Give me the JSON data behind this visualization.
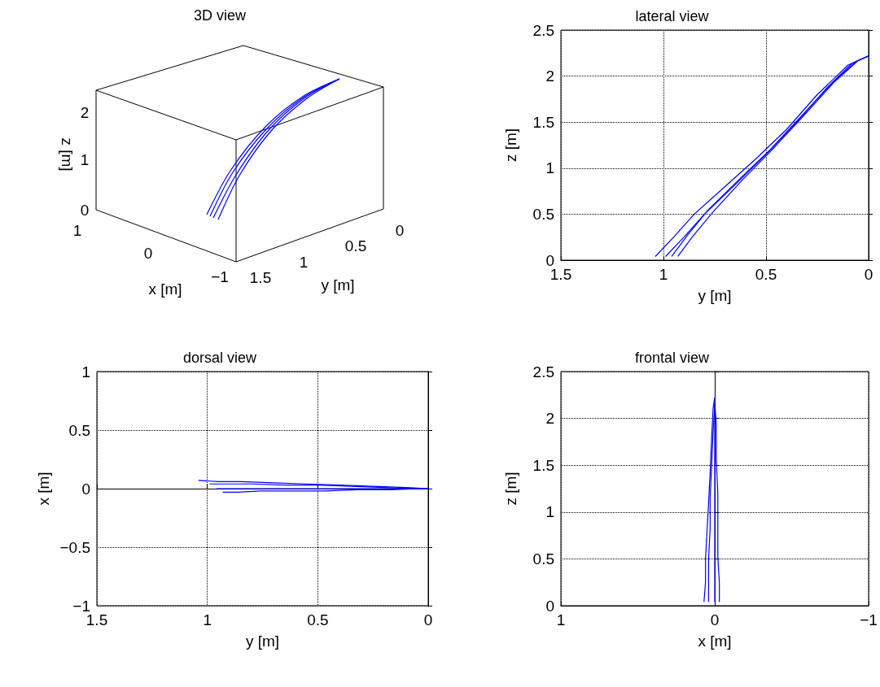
{
  "chart_data": [
    {
      "type": "other",
      "title": "3D view",
      "xlabel": "x [m]",
      "ylabel": "y [m]",
      "annotations": [
        "z [m]",
        "0",
        "1",
        "2",
        "1",
        "0",
        "−1",
        "1.5",
        "1",
        "0.5",
        "0"
      ]
    },
    {
      "type": "line",
      "title": "lateral view",
      "xlabel": "y [m]",
      "ylabel": "z [m]",
      "xlim": [
        1.5,
        0
      ],
      "xticks": [
        1.5,
        1,
        0.5,
        0
      ],
      "ylim": [
        0,
        2.5
      ],
      "yticks": [
        0,
        0.5,
        1,
        1.5,
        2,
        2.5
      ],
      "grid": true,
      "marker": "none",
      "line_style": "solid",
      "series": [
        {
          "color": "#0000ff",
          "x": [
            1.04,
            0.95,
            0.85,
            0.7,
            0.55,
            0.4,
            0.25,
            0.1,
            0
          ],
          "values": [
            0.04,
            0.25,
            0.5,
            0.8,
            1.1,
            1.42,
            1.8,
            2.12,
            2.22
          ]
        },
        {
          "color": "#0000ff",
          "x": [
            0.99,
            0.9,
            0.8,
            0.65,
            0.5,
            0.35,
            0.2,
            0.08,
            0
          ],
          "values": [
            0.04,
            0.25,
            0.5,
            0.82,
            1.15,
            1.5,
            1.88,
            2.14,
            2.22
          ]
        },
        {
          "color": "#0000ff",
          "x": [
            0.96,
            0.88,
            0.78,
            0.63,
            0.48,
            0.33,
            0.18,
            0.06,
            0
          ],
          "values": [
            0.04,
            0.28,
            0.55,
            0.88,
            1.2,
            1.56,
            1.92,
            2.16,
            2.22
          ]
        },
        {
          "color": "#0000ff",
          "x": [
            0.93,
            0.86,
            0.76,
            0.62,
            0.47,
            0.32,
            0.17,
            0.05,
            0
          ],
          "values": [
            0.04,
            0.25,
            0.52,
            0.86,
            1.2,
            1.56,
            1.93,
            2.17,
            2.22
          ]
        }
      ]
    },
    {
      "type": "line",
      "title": "dorsal view",
      "xlabel": "y [m]",
      "ylabel": "x [m]",
      "xlim": [
        1.5,
        0
      ],
      "xticks": [
        1.5,
        1,
        0.5,
        0
      ],
      "ylim": [
        -1,
        1
      ],
      "yticks": [
        {
          "value": -1,
          "label": "−1"
        },
        {
          "value": -0.5,
          "label": "−0.5"
        },
        0,
        0.5,
        1
      ],
      "grid": true,
      "marker": "none",
      "line_style": "solid",
      "series": [
        {
          "color": "#0000ff",
          "x": [
            1.04,
            0.95,
            0.85,
            0.7,
            0.55,
            0.4,
            0.25,
            0.1,
            0
          ],
          "values": [
            0.07,
            0.06,
            0.06,
            0.05,
            0.04,
            0.03,
            0.02,
            0.01,
            0
          ]
        },
        {
          "color": "#0000ff",
          "x": [
            0.99,
            0.9,
            0.8,
            0.65,
            0.5,
            0.35,
            0.2,
            0.08,
            0
          ],
          "values": [
            0.04,
            0.04,
            0.04,
            0.03,
            0.03,
            0.02,
            0.01,
            0,
            0
          ]
        },
        {
          "color": "#0000ff",
          "x": [
            0.96,
            0.88,
            0.78,
            0.63,
            0.48,
            0.33,
            0.18,
            0.06,
            0
          ],
          "values": [
            0,
            0,
            0,
            0,
            0,
            0,
            0,
            0,
            0
          ]
        },
        {
          "color": "#0000ff",
          "x": [
            0.93,
            0.86,
            0.76,
            0.62,
            0.47,
            0.32,
            0.17,
            0.05,
            0
          ],
          "values": [
            -0.03,
            -0.03,
            -0.02,
            -0.02,
            -0.02,
            -0.01,
            -0.01,
            0,
            0
          ]
        }
      ]
    },
    {
      "type": "line",
      "title": "frontal view",
      "xlabel": "x [m]",
      "ylabel": "z [m]",
      "xlim": [
        1,
        -1
      ],
      "xticks": [
        1,
        0,
        {
          "value": -1,
          "label": "−1"
        }
      ],
      "ylim": [
        0,
        2.5
      ],
      "yticks": [
        0,
        0.5,
        1,
        1.5,
        2,
        2.5
      ],
      "grid": true,
      "marker": "none",
      "line_style": "solid",
      "series": [
        {
          "color": "#0000ff",
          "x": [
            0.07,
            0.06,
            0.06,
            0.05,
            0.04,
            0.03,
            0.02,
            0.01,
            0
          ],
          "values": [
            0.04,
            0.25,
            0.5,
            0.8,
            1.1,
            1.42,
            1.8,
            2.12,
            2.22
          ]
        },
        {
          "color": "#0000ff",
          "x": [
            0.04,
            0.04,
            0.04,
            0.03,
            0.03,
            0.02,
            0.01,
            0,
            0
          ],
          "values": [
            0.04,
            0.25,
            0.5,
            0.82,
            1.15,
            1.5,
            1.88,
            2.14,
            2.22
          ]
        },
        {
          "color": "#0000ff",
          "x": [
            0,
            0,
            0,
            0,
            0,
            0,
            0,
            0,
            0
          ],
          "values": [
            0.04,
            0.28,
            0.55,
            0.88,
            1.2,
            1.56,
            1.92,
            2.16,
            2.22
          ]
        },
        {
          "color": "#0000ff",
          "x": [
            -0.03,
            -0.03,
            -0.02,
            -0.02,
            -0.02,
            -0.01,
            -0.01,
            0,
            0
          ],
          "values": [
            0.04,
            0.25,
            0.52,
            0.86,
            1.2,
            1.56,
            1.93,
            2.17,
            2.22
          ]
        }
      ]
    }
  ]
}
